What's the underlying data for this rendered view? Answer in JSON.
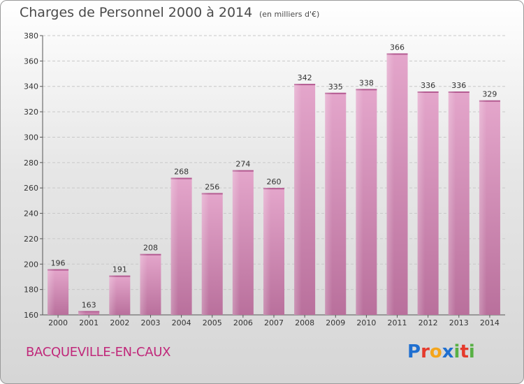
{
  "header": {
    "title": "Charges de Personnel 2000 à 2014",
    "unit": "(en milliers d'€)"
  },
  "footer": {
    "town": "BACQUEVILLE-EN-CAUX",
    "logo_letters": [
      "P",
      "r",
      "o",
      "x",
      "i",
      "t",
      "i"
    ],
    "logo_colors": [
      "#1f6fd0",
      "#e53a2c",
      "#f4a51b",
      "#1f6fd0",
      "#58b044",
      "#e53a2c",
      "#58b044"
    ]
  },
  "chart_data": {
    "type": "bar",
    "categories": [
      "2000",
      "2001",
      "2002",
      "2003",
      "2004",
      "2005",
      "2006",
      "2007",
      "2008",
      "2009",
      "2010",
      "2011",
      "2012",
      "2013",
      "2014"
    ],
    "values": [
      196,
      163,
      191,
      208,
      268,
      256,
      274,
      260,
      342,
      335,
      338,
      366,
      336,
      336,
      329
    ],
    "data_labels": [
      "196",
      "163",
      "191",
      "208",
      "268",
      "256",
      "274",
      "260",
      "342",
      "335",
      "338",
      "366",
      "336",
      "336",
      "329"
    ],
    "ylim": [
      160,
      380
    ],
    "yticks": [
      "160",
      "180",
      "200",
      "220",
      "240",
      "260",
      "280",
      "300",
      "320",
      "340",
      "360",
      "380"
    ],
    "grid": true,
    "bar_color": "#d98bb8"
  }
}
